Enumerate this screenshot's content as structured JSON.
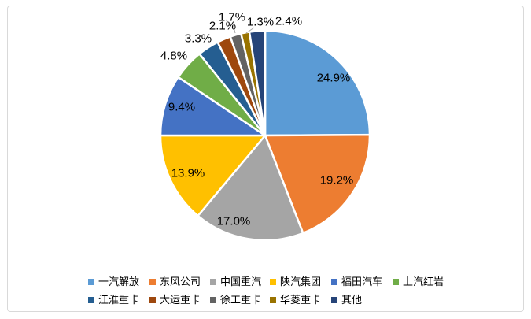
{
  "frame": {
    "background": "#FFFFFF",
    "border_color": "#D9D9D9"
  },
  "chart_data": {
    "type": "pie",
    "title": "",
    "categories": [
      "一汽解放",
      "东风公司",
      "中国重汽",
      "陕汽集团",
      "福田汽车",
      "上汽红岩",
      "江淮重卡",
      "大运重卡",
      "徐工重卡",
      "华菱重卡",
      "其他"
    ],
    "values": [
      24.9,
      19.2,
      17.0,
      13.9,
      9.4,
      4.8,
      3.3,
      2.1,
      1.7,
      1.3,
      2.4
    ],
    "labels": [
      "24.9%",
      "19.2%",
      "17.0%",
      "13.9%",
      "9.4%",
      "4.8%",
      "3.3%",
      "2.1%",
      "1.7%",
      "1.3%",
      "2.4%"
    ],
    "colors": [
      "#5B9BD5",
      "#ED7D31",
      "#A5A5A5",
      "#FFC000",
      "#4472C4",
      "#70AD47",
      "#255E91",
      "#9E480E",
      "#636363",
      "#997300",
      "#264478"
    ],
    "start_angle_deg": 0,
    "direction": "clockwise",
    "slice_border_color": "#FFFFFF",
    "label_color": "#000000",
    "leader_line_color": "#A6A6A6",
    "legend_position": "bottom",
    "grid": false
  }
}
